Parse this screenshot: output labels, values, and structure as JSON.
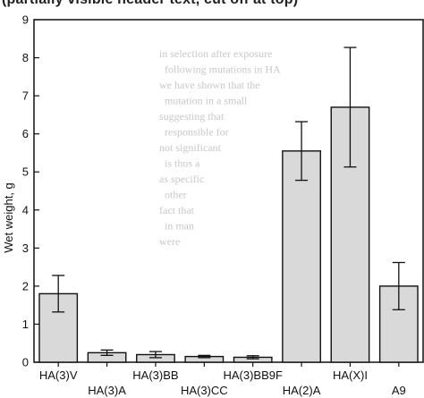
{
  "page_header": "(partially visible header text, cut off at top)",
  "chart_data": {
    "type": "bar",
    "categories": [
      "HA(3)V",
      "HA(3)A",
      "HA(3)BB",
      "HA(3)CC",
      "HA(3)BB9F",
      "HA(2)A",
      "HA(X)I",
      "A9"
    ],
    "values": [
      1.8,
      0.25,
      0.2,
      0.15,
      0.13,
      5.55,
      6.7,
      2.0
    ],
    "error": [
      0.48,
      0.07,
      0.08,
      0.03,
      0.04,
      0.77,
      1.57,
      0.62
    ],
    "title": "",
    "xlabel": "",
    "ylabel": "Wet weight, g",
    "ylim": [
      0,
      9
    ],
    "yticks": [
      0,
      1,
      2,
      3,
      4,
      5,
      6,
      7,
      8,
      9
    ],
    "grid": false,
    "legend": "none",
    "bar_fill": "#d9d9d9",
    "stroke": "#111111"
  }
}
